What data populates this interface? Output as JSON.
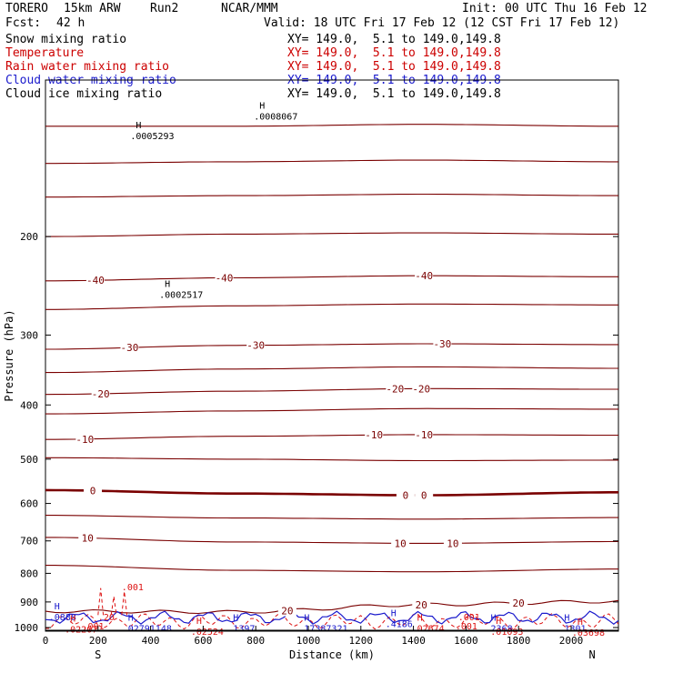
{
  "header": {
    "model": "TORERO",
    "resolution": "15km ARW",
    "run": "Run2",
    "org": "NCAR/MMM",
    "init": "Init: 00 UTC Thu 16 Feb 12",
    "fcst_label": "Fcst:",
    "fcst_value": "42 h",
    "valid": "Valid: 18 UTC Fri 17 Feb 12 (12 CST Fri 17 Feb 12)"
  },
  "fields": [
    {
      "name": "Snow mixing ratio",
      "xy": "XY= 149.0,  5.1 to 149.0,149.8",
      "color": "#000000"
    },
    {
      "name": "Temperature",
      "xy": "XY= 149.0,  5.1 to 149.0,149.8",
      "color": "#cc0000"
    },
    {
      "name": "Rain water mixing ratio",
      "xy": "XY= 149.0,  5.1 to 149.0,149.8",
      "color": "#cc0000"
    },
    {
      "name": "Cloud water mixing ratio",
      "xy": "XY= 149.0,  5.1 to 149.0,149.8",
      "color": "#1a1acc"
    },
    {
      "name": "Cloud ice mixing ratio",
      "xy": "XY= 149.0,  5.1 to 149.0,149.8",
      "color": "#000000"
    }
  ],
  "chart_data": {
    "type": "contour",
    "xlabel": "Distance (km)",
    "ylabel": "Pressure (hPa)",
    "xlim": [
      0,
      2180
    ],
    "ylim": [
      1015,
      105
    ],
    "x_ticks": [
      0,
      200,
      400,
      600,
      800,
      1000,
      1200,
      1400,
      1600,
      1800,
      2000
    ],
    "y_ticks": [
      200,
      300,
      400,
      500,
      600,
      700,
      800,
      900,
      1000
    ],
    "left_end": "S",
    "right_end": "N",
    "temperature_color": "#7a0000",
    "rain_color": "#dd1111",
    "cloud_water_color": "#1a1acc",
    "temperature_isotherms": [
      {
        "level": -60,
        "p": [
          127,
          127,
          126,
          127
        ]
      },
      {
        "level": -55,
        "p": [
          148,
          147,
          146,
          147
        ]
      },
      {
        "level": -50,
        "p": [
          170,
          169,
          168,
          169
        ]
      },
      {
        "level": -45,
        "p": [
          200,
          198,
          197,
          198
        ]
      },
      {
        "level": -40,
        "p": [
          240,
          237,
          235,
          236
        ],
        "labels_x": [
          190,
          680,
          1440
        ]
      },
      {
        "level": -35,
        "p": [
          270,
          266,
          264,
          265
        ]
      },
      {
        "level": -30,
        "p": [
          318,
          313,
          311,
          312
        ],
        "labels_x": [
          320,
          800,
          1510
        ]
      },
      {
        "level": -25,
        "p": [
          350,
          345,
          342,
          344
        ]
      },
      {
        "level": -20,
        "p": [
          383,
          378,
          374,
          375
        ],
        "labels_x": [
          210,
          1330,
          1430
        ]
      },
      {
        "level": -15,
        "p": [
          415,
          410,
          406,
          407
        ]
      },
      {
        "level": -10,
        "p": [
          461,
          455,
          452,
          453
        ],
        "labels_x": [
          150,
          1250,
          1440
        ]
      },
      {
        "level": -5,
        "p": [
          497,
          500,
          503,
          502
        ]
      },
      {
        "level": 0,
        "p": [
          568,
          576,
          580,
          573
        ],
        "labels_x": [
          180,
          1370,
          1440
        ]
      },
      {
        "level": 5,
        "p": [
          630,
          637,
          640,
          636
        ]
      },
      {
        "level": 10,
        "p": [
          690,
          703,
          707,
          702
        ],
        "labels_x": [
          160,
          1350,
          1550
        ]
      },
      {
        "level": 15,
        "p": [
          774,
          790,
          795,
          786
        ]
      },
      {
        "level": 20,
        "p": [
          935,
          938,
          910,
          898
        ],
        "labels_x": [
          920,
          1430,
          1800
        ]
      }
    ],
    "extrema_labels": [
      {
        "label": "H",
        "value": ".0005293",
        "x": 330,
        "p": 130
      },
      {
        "label": "H",
        "value": ".0008067",
        "x": 800,
        "p": 120
      },
      {
        "label": "H",
        "value": ".0002517",
        "x": 440,
        "p": 250
      },
      {
        "label": "H",
        "value": ".0888",
        "x": 20,
        "p": 942,
        "color": "#1a1acc"
      },
      {
        "label": "H",
        "value": ".02207",
        "x": 80,
        "p": 990,
        "color": "#dd1111"
      },
      {
        "label": "H",
        "value": ".02791148",
        "x": 300,
        "p": 987,
        "color": "#1a1acc"
      },
      {
        "label": "H",
        "value": ".02524",
        "x": 560,
        "p": 1000,
        "color": "#dd1111"
      },
      {
        "label": "H",
        "value": ".1397",
        "x": 700,
        "p": 987,
        "color": "#1a1acc"
      },
      {
        "label": "H",
        "value": ".17387321",
        "x": 970,
        "p": 987,
        "color": "#1a1acc"
      },
      {
        "label": "H",
        "value": ".4186",
        "x": 1300,
        "p": 968,
        "color": "#1a1acc"
      },
      {
        "label": "H",
        "value": ".02674",
        "x": 1400,
        "p": 987,
        "color": "#dd1111"
      },
      {
        "label": "H",
        "value": ".2368",
        "x": 1680,
        "p": 987,
        "color": "#1a1acc"
      },
      {
        "label": "H",
        "value": ".01093",
        "x": 1700,
        "p": 1000,
        "color": "#dd1111"
      },
      {
        "label": "H",
        "value": ".1301",
        "x": 1960,
        "p": 987,
        "color": "#1a1acc"
      },
      {
        "label": "H",
        "value": ".03698",
        "x": 2010,
        "p": 1003,
        "color": "#dd1111"
      }
    ],
    "rain_labels": [
      {
        "value": ".001",
        "x": 290,
        "p": 858
      },
      {
        "value": ".001",
        "x": 140,
        "p": 1008
      },
      {
        "value": ".001",
        "x": 1560,
        "p": 1008
      },
      {
        "value": ".001",
        "x": 1570,
        "p": 970
      },
      {
        "value": ".20",
        "x": 200,
        "p": 970
      }
    ]
  }
}
